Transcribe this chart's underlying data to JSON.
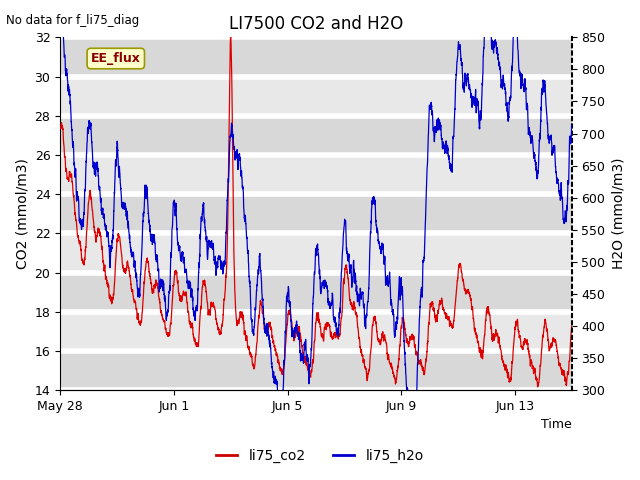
{
  "title": "LI7500 CO2 and H2O",
  "top_left_text": "No data for f_li75_diag",
  "xlabel": "Time",
  "ylabel_left": "CO2 (mmol/m3)",
  "ylabel_right": "H2O (mmol/m3)",
  "ylim_left": [
    14,
    32
  ],
  "ylim_right": [
    300,
    850
  ],
  "yticks_left": [
    14,
    16,
    18,
    20,
    22,
    24,
    26,
    28,
    30,
    32
  ],
  "yticks_right": [
    300,
    350,
    400,
    450,
    500,
    550,
    600,
    650,
    700,
    750,
    800,
    850
  ],
  "xtick_labels": [
    "May 28",
    "Jun 1",
    "Jun 5",
    "Jun 9",
    "Jun 13"
  ],
  "legend_labels": [
    "li75_co2",
    "li75_h2o"
  ],
  "legend_colors": [
    "#cc0000",
    "#0000cc"
  ],
  "annotation_box": "EE_flux",
  "annotation_box_color": "#ffffcc",
  "annotation_box_edge": "#999900",
  "grid_color": "#d0d0d0",
  "bg_color": "#e8e8e8",
  "co2_color": "#dd0000",
  "h2o_color": "#0000cc"
}
